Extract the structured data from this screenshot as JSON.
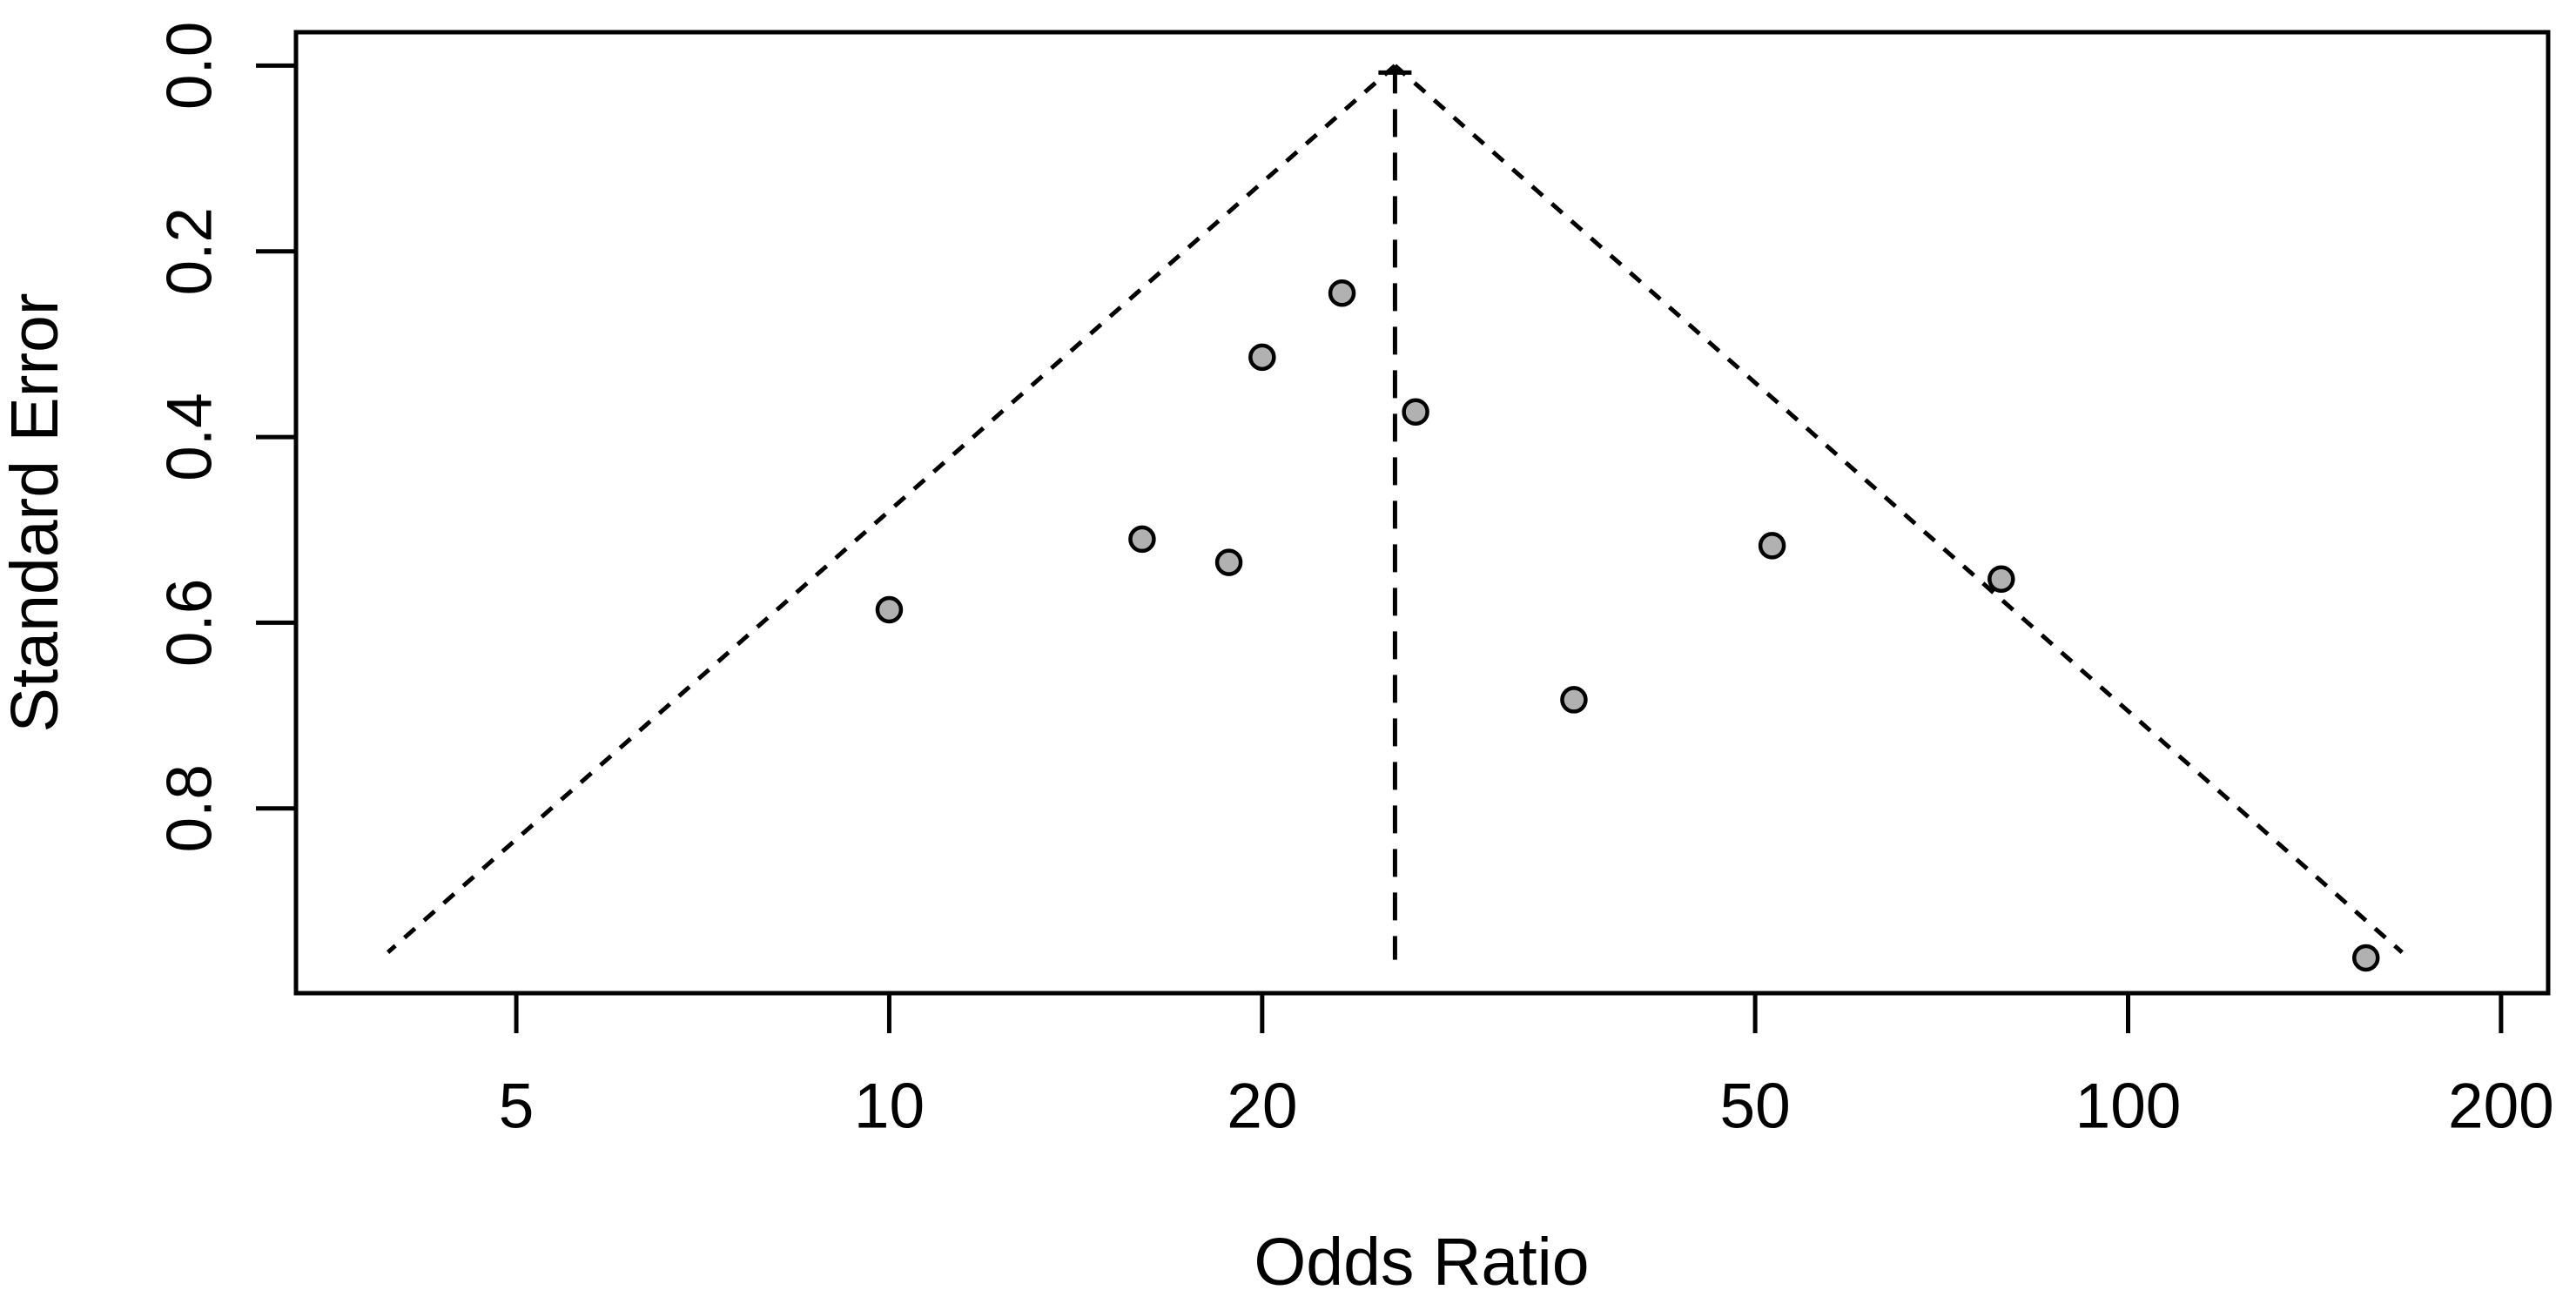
{
  "figure": {
    "kind": "funnel-plot",
    "background": "#ffffff"
  },
  "chart_data": {
    "type": "scatter",
    "subtype": "funnel-plot",
    "title": "",
    "xlabel": "Odds Ratio",
    "ylabel": "Standard Error",
    "x_scale": "log10",
    "y_inverted": true,
    "grid": "off",
    "legend": "none",
    "xlim": [
      3.32,
      218.3
    ],
    "ylim": [
      -0.036,
      0.999
    ],
    "x_ticks": [
      5,
      10,
      20,
      50,
      100,
      200
    ],
    "y_ticks": [
      "0.0",
      "0.2",
      "0.4",
      "0.6",
      "0.8"
    ],
    "points": [
      {
        "or": 23.2,
        "se": 0.245
      },
      {
        "or": 20.0,
        "se": 0.314
      },
      {
        "or": 26.6,
        "se": 0.373
      },
      {
        "or": 16.0,
        "se": 0.51
      },
      {
        "or": 18.8,
        "se": 0.535
      },
      {
        "or": 10.0,
        "se": 0.586
      },
      {
        "or": 51.6,
        "se": 0.517
      },
      {
        "or": 79.0,
        "se": 0.553
      },
      {
        "or": 35.7,
        "se": 0.683
      },
      {
        "or": 155.6,
        "se": 0.961
      }
    ],
    "funnel": {
      "center_or": 25.6,
      "ci_z": 1.96,
      "funnel_line_se_end": 0.955,
      "center_line_se_end": 0.963
    },
    "style": {
      "point_fill": "#b1b1b1",
      "point_stroke": "#000000",
      "line_color": "#000000",
      "funnel_dash": "16 14",
      "center_dash": "32 18"
    }
  }
}
